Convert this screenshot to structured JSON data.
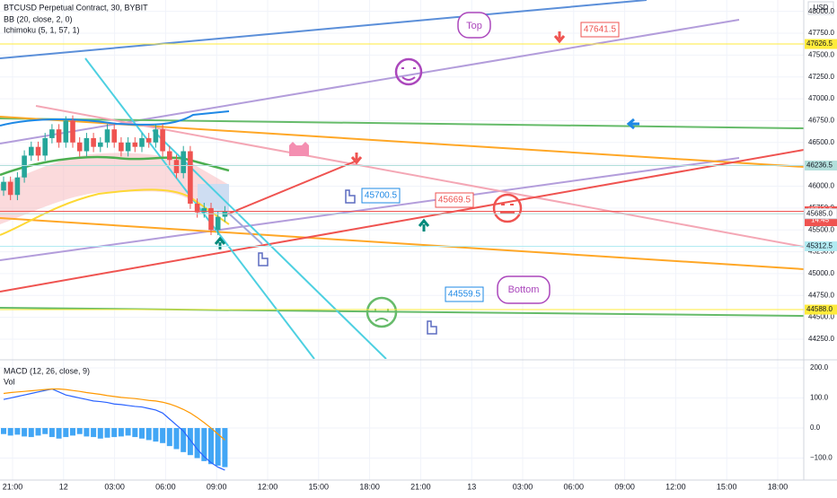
{
  "header": {
    "symbol": "BTCUSD Perpetual Contract, 30, BYBIT",
    "bb": "BB (20, close, 2, 0)",
    "ichimoku": "Ichimoku (5, 1, 57, 1)",
    "currency": "USD"
  },
  "chart_data": [
    {
      "type": "candlestick",
      "up_color": "#26a69a",
      "down_color": "#ef5350",
      "ylim": [
        44024,
        48130
      ],
      "yticks": [
        {
          "value": 48000,
          "label": "48000.0"
        },
        {
          "value": 47750,
          "label": "47750.0"
        },
        {
          "value": 47500,
          "label": "47500.0"
        },
        {
          "value": 47250,
          "label": "47250.0"
        },
        {
          "value": 47000,
          "label": "47000.0"
        },
        {
          "value": 46750,
          "label": "46750.0"
        },
        {
          "value": 46500,
          "label": "46500.0"
        },
        {
          "value": 46250,
          "label": "46250.0"
        },
        {
          "value": 46000,
          "label": "46000.0"
        },
        {
          "value": 45750,
          "label": "45750.0"
        },
        {
          "value": 45500,
          "label": "45500.0"
        },
        {
          "value": 45250,
          "label": "45250.0"
        },
        {
          "value": 45000,
          "label": "45000.0"
        },
        {
          "value": 44750,
          "label": "44750.0"
        },
        {
          "value": 44500,
          "label": "44500.0"
        },
        {
          "value": 44250,
          "label": "44250.0"
        }
      ],
      "open": [
        45950,
        46050,
        45900,
        46100,
        46350,
        46450,
        46350,
        46550,
        46650,
        46500,
        46750,
        46500,
        46400,
        46550,
        46450,
        46500,
        46650,
        46500,
        46400,
        46500,
        46450,
        46550,
        46500,
        46650,
        46400,
        46300,
        46150,
        46400,
        45800,
        45700,
        45750,
        45500,
        45650
      ],
      "high": [
        46110,
        46110,
        46160,
        46410,
        46510,
        46510,
        46610,
        46710,
        46710,
        46800,
        46810,
        46560,
        46610,
        46610,
        46560,
        46710,
        46710,
        46560,
        46560,
        46560,
        46610,
        46610,
        46710,
        46710,
        46460,
        46360,
        46460,
        46460,
        45860,
        45810,
        45810,
        45710,
        45772
      ],
      "low": [
        45890,
        45840,
        45840,
        46040,
        46290,
        46290,
        46290,
        46490,
        46440,
        46440,
        46440,
        46340,
        46340,
        46390,
        46390,
        46440,
        46440,
        46340,
        46340,
        46390,
        46390,
        46440,
        46440,
        46340,
        46240,
        46090,
        46090,
        45740,
        45640,
        45640,
        45440,
        45440,
        45590
      ],
      "close": [
        46050,
        45900,
        46100,
        46350,
        46450,
        46350,
        46550,
        46650,
        46500,
        46750,
        46500,
        46400,
        46550,
        46450,
        46500,
        46650,
        46500,
        46400,
        46500,
        46450,
        46550,
        46500,
        46650,
        46400,
        46300,
        46150,
        46400,
        45800,
        45700,
        45750,
        45500,
        45650,
        45712.5
      ]
    },
    {
      "type": "macd",
      "title": "MACD (12, 26, close, 9)",
      "subtitle": "Vol",
      "ylim": [
        -173,
        221
      ],
      "yticks": [
        {
          "value": 200,
          "label": "200.0"
        },
        {
          "value": 100,
          "label": "100.0"
        },
        {
          "value": 0,
          "label": "0.0"
        },
        {
          "value": -100,
          "label": "−100.0"
        }
      ],
      "series": [
        {
          "name": "Histogram",
          "color": "#2196f3",
          "values": [
            -20,
            -25,
            -22,
            -28,
            -30,
            -25,
            -20,
            -30,
            -35,
            -30,
            -25,
            -20,
            -28,
            -30,
            -35,
            -32,
            -30,
            -28,
            -25,
            -30,
            -35,
            -40,
            -45,
            -50,
            -60,
            -70,
            -80,
            -90,
            -100,
            -110,
            -120,
            -125,
            -130
          ]
        },
        {
          "name": "MACD",
          "color": "#2962ff",
          "values": [
            95,
            100,
            105,
            110,
            115,
            120,
            125,
            130,
            120,
            110,
            105,
            100,
            95,
            90,
            88,
            85,
            80,
            78,
            75,
            72,
            70,
            65,
            60,
            50,
            30,
            10,
            -10,
            -40,
            -70,
            -95,
            -115,
            -130,
            -140
          ]
        },
        {
          "name": "Signal",
          "color": "#ff9800",
          "values": [
            115,
            118,
            120,
            122,
            124,
            126,
            128,
            130,
            130,
            128,
            125,
            122,
            118,
            115,
            112,
            108,
            105,
            102,
            100,
            98,
            95,
            92,
            90,
            86,
            80,
            72,
            62,
            50,
            35,
            18,
            0,
            -20,
            -40
          ]
        }
      ]
    }
  ],
  "time_axis": [
    "21:00",
    "12",
    "03:00",
    "06:00",
    "09:00",
    "12:00",
    "15:00",
    "18:00",
    "21:00",
    "13",
    "03:00",
    "06:00",
    "09:00",
    "12:00",
    "15:00",
    "18:00"
  ],
  "price_labels": [
    {
      "value": 47626.5,
      "label": "47626.5",
      "color": "#ffeb3b"
    },
    {
      "value": 46236.5,
      "label": "46236.5",
      "color": "#b2dfdb"
    },
    {
      "value": 45712.5,
      "label": "45712.5",
      "color": "#ef5350",
      "countdown": "14:45"
    },
    {
      "value": 45685.0,
      "label": "45685.0",
      "color": "#ffffff"
    },
    {
      "value": 45312.5,
      "label": "45312.5",
      "color": "#b2ebf2"
    },
    {
      "value": 44588.0,
      "label": "44588.0",
      "color": "#ffeb3b"
    }
  ],
  "annotations": {
    "top": "Top",
    "bottom": "Bottom",
    "price_1": 47641.5,
    "price_2": 45700.5,
    "price_3": 45669.5,
    "price_4": 44559.5
  }
}
